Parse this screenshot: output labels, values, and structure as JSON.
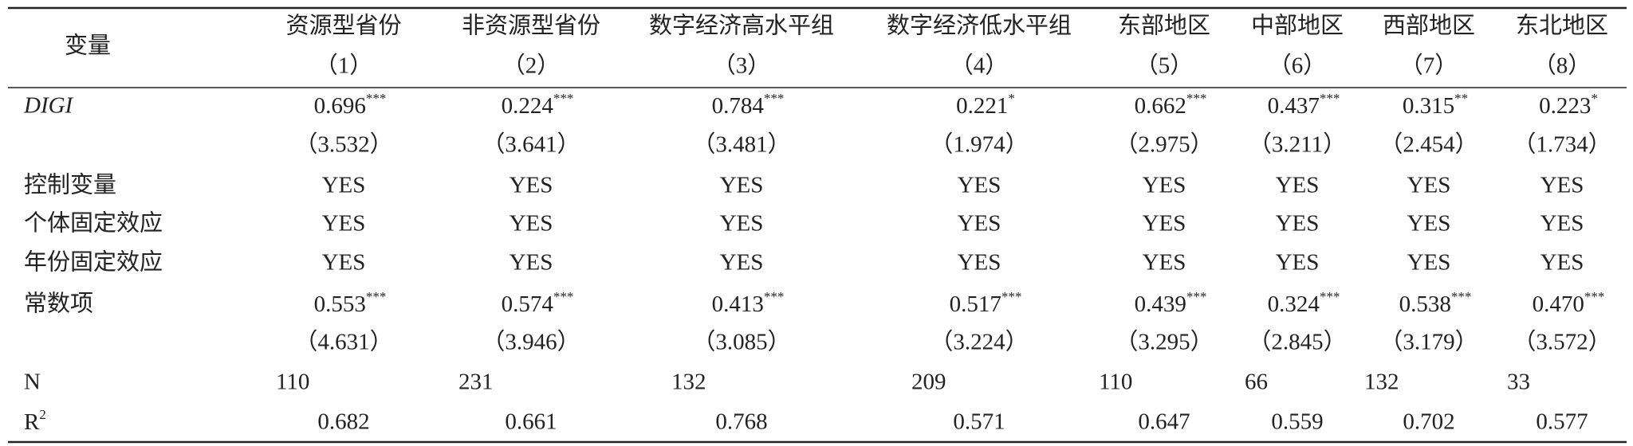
{
  "table": {
    "header": {
      "label": "变量",
      "columns": [
        {
          "name": "资源型省份",
          "number": "（1）"
        },
        {
          "name": "非资源型省份",
          "number": "（2）"
        },
        {
          "name": "数字经济高水平组",
          "number": "（3）"
        },
        {
          "name": "数字经济低水平组",
          "number": "（4）"
        },
        {
          "name": "东部地区",
          "number": "（5）"
        },
        {
          "name": "中部地区",
          "number": "（6）"
        },
        {
          "name": "西部地区",
          "number": "（7）"
        },
        {
          "name": "东北地区",
          "number": "（8）"
        }
      ]
    },
    "rows": [
      {
        "label": "DIGI",
        "italic": true,
        "cells": [
          {
            "text": "0.696",
            "sig": "***"
          },
          {
            "text": "0.224",
            "sig": "***"
          },
          {
            "text": "0.784",
            "sig": "***"
          },
          {
            "text": "0.221",
            "sig": "*"
          },
          {
            "text": "0.662",
            "sig": "***"
          },
          {
            "text": "0.437",
            "sig": "***"
          },
          {
            "text": "0.315",
            "sig": "**"
          },
          {
            "text": "0.223",
            "sig": "*"
          }
        ]
      },
      {
        "cells": [
          "（3.532）",
          "（3.641）",
          "（3.481）",
          "（1.974）",
          "（2.975）",
          "（3.211）",
          "（2.454）",
          "（1.734）"
        ]
      },
      {
        "label": "控制变量",
        "cells": [
          "YES",
          "YES",
          "YES",
          "YES",
          "YES",
          "YES",
          "YES",
          "YES"
        ]
      },
      {
        "label": "个体固定效应",
        "cells": [
          "YES",
          "YES",
          "YES",
          "YES",
          "YES",
          "YES",
          "YES",
          "YES"
        ]
      },
      {
        "label": "年份固定效应",
        "cells": [
          "YES",
          "YES",
          "YES",
          "YES",
          "YES",
          "YES",
          "YES",
          "YES"
        ]
      },
      {
        "label": "常数项",
        "cells": [
          {
            "text": "0.553",
            "sig": "***"
          },
          {
            "text": "0.574",
            "sig": "***"
          },
          {
            "text": "0.413",
            "sig": "***"
          },
          {
            "text": "0.517",
            "sig": "***"
          },
          {
            "text": "0.439",
            "sig": "***"
          },
          {
            "text": "0.324",
            "sig": "***"
          },
          {
            "text": "0.538",
            "sig": "***"
          },
          {
            "text": "0.470",
            "sig": "***"
          }
        ]
      },
      {
        "cells": [
          "（4.631）",
          "（3.946）",
          "（3.085）",
          "（3.224）",
          "（3.295）",
          "（2.845）",
          "（3.179）",
          "（3.572）"
        ]
      },
      {
        "label": "N",
        "align": "start",
        "cells": [
          "110",
          "231",
          "132",
          "209",
          "110",
          "66",
          "132",
          "33"
        ]
      },
      {
        "label": {
          "text": "R",
          "sup": "2"
        },
        "cells": [
          "0.682",
          "0.661",
          "0.768",
          "0.571",
          "0.647",
          "0.559",
          "0.702",
          "0.577"
        ]
      }
    ]
  }
}
